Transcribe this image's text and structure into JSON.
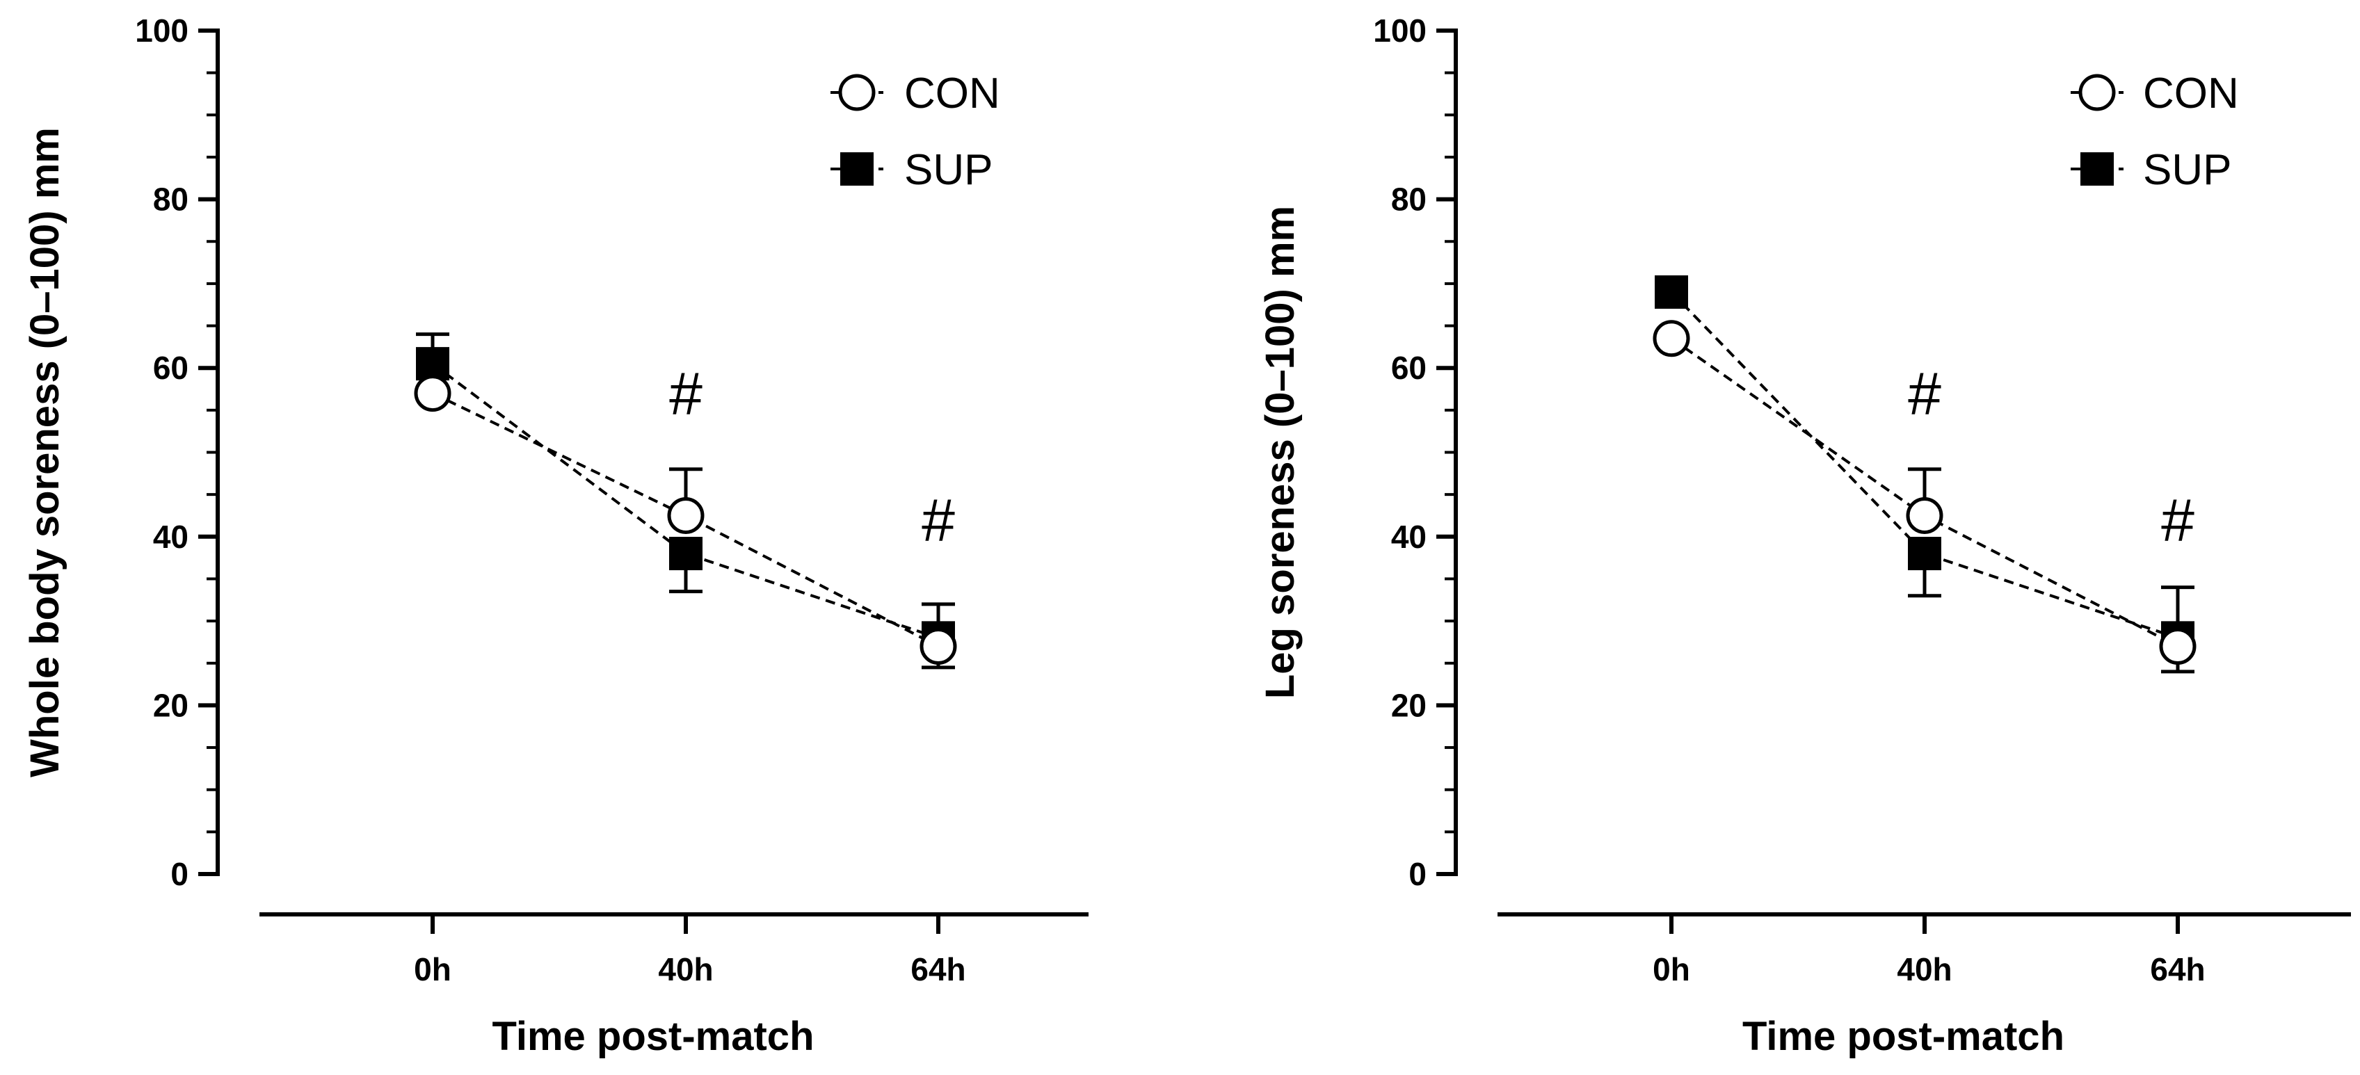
{
  "chart_data": [
    {
      "type": "line",
      "title": "",
      "xlabel": "Time post-match",
      "ylabel": "Whole body soreness (0–100) mm",
      "categories": [
        "0h",
        "40h",
        "64h"
      ],
      "ylim": [
        0,
        100
      ],
      "yticks": [
        0,
        20,
        40,
        60,
        80,
        100
      ],
      "legend_position": "top-right",
      "series": [
        {
          "name": "CON",
          "marker": "open-circle",
          "values": [
            57,
            42.5,
            27
          ],
          "err_up": [
            null,
            5.5,
            null
          ],
          "err_down": [
            null,
            null,
            null
          ]
        },
        {
          "name": "SUP",
          "marker": "filled-square",
          "values": [
            60.5,
            38,
            28
          ],
          "err_up": [
            3.5,
            null,
            4
          ],
          "err_down": [
            null,
            4.5,
            3.5
          ]
        }
      ],
      "annotations": [
        {
          "category": "40h",
          "text": "#",
          "y": 57
        },
        {
          "category": "64h",
          "text": "#",
          "y": 42
        }
      ]
    },
    {
      "type": "line",
      "title": "",
      "xlabel": "Time post-match",
      "ylabel": "Leg soreness (0–100) mm",
      "categories": [
        "0h",
        "40h",
        "64h"
      ],
      "ylim": [
        0,
        100
      ],
      "yticks": [
        0,
        20,
        40,
        60,
        80,
        100
      ],
      "legend_position": "top-right",
      "series": [
        {
          "name": "CON",
          "marker": "open-circle",
          "values": [
            63.5,
            42.5,
            27
          ],
          "err_up": [
            null,
            5.5,
            null
          ],
          "err_down": [
            null,
            null,
            null
          ]
        },
        {
          "name": "SUP",
          "marker": "filled-square",
          "values": [
            69,
            38,
            28
          ],
          "err_up": [
            null,
            null,
            6
          ],
          "err_down": [
            null,
            5,
            4
          ]
        }
      ],
      "annotations": [
        {
          "category": "40h",
          "text": "#",
          "y": 57
        },
        {
          "category": "64h",
          "text": "#",
          "y": 42
        }
      ]
    }
  ]
}
